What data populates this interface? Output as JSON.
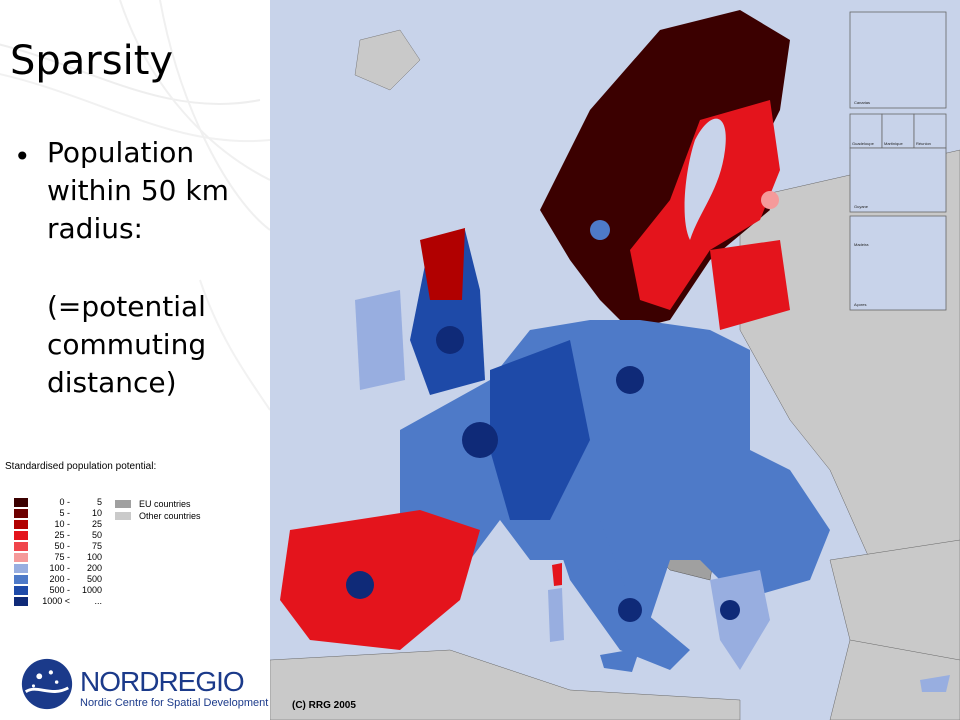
{
  "slide": {
    "title": "Sparsity",
    "bullet_line1": "Population",
    "bullet_line2": "within 50 km radius:",
    "bullet_line3": "(=potential commuting distance)"
  },
  "legend": {
    "title": "Standardised population potential:",
    "classes": [
      {
        "from": "0 -",
        "to": "5",
        "color": "#3b0000"
      },
      {
        "from": "5 -",
        "to": "10",
        "color": "#6e0000"
      },
      {
        "from": "10 -",
        "to": "25",
        "color": "#b10000"
      },
      {
        "from": "25 -",
        "to": "50",
        "color": "#e4141c"
      },
      {
        "from": "50 -",
        "to": "75",
        "color": "#f0454b"
      },
      {
        "from": "75 -",
        "to": "100",
        "color": "#f59a9a"
      },
      {
        "from": "100 -",
        "to": "200",
        "color": "#98aee0"
      },
      {
        "from": "200 -",
        "to": "500",
        "color": "#4e7ac8"
      },
      {
        "from": "500 -",
        "to": "1000",
        "color": "#1e4aa8"
      },
      {
        "from": "1000 <",
        "to": "...",
        "color": "#0f2a78"
      }
    ],
    "other": [
      {
        "label": "EU countries",
        "color": "#a0a0a0"
      },
      {
        "label": "Other countries",
        "color": "#cacaca"
      }
    ]
  },
  "logo": {
    "name": "NORDREGIO",
    "subtitle": "Nordic Centre for Spatial Development"
  },
  "map": {
    "copyright": "(C) RRG 2005",
    "insets": [
      "Canarias",
      "Guadeloupe",
      "Martinique",
      "Réunion",
      "Guyane",
      "Madeira",
      "Açores"
    ],
    "colors": {
      "sea": "#c8d3ea",
      "other_countries": "#c9c9c9",
      "eu_grey": "#a0a0a0",
      "border": "#444444"
    }
  }
}
